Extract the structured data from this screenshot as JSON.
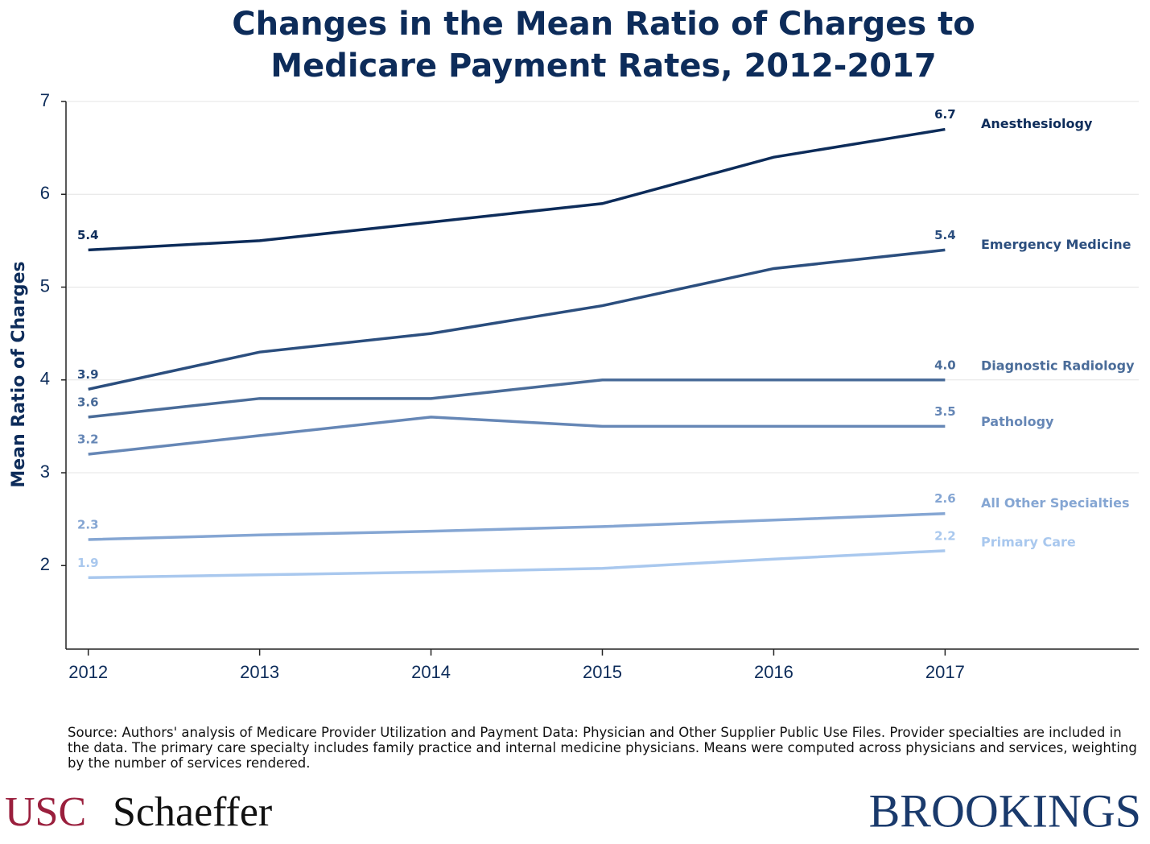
{
  "chart_data": {
    "type": "line",
    "title": [
      "Changes in the Mean Ratio of Charges to",
      "Medicare Payment Rates, 2012-2017"
    ],
    "y_label": "Mean Ratio of Charges",
    "x": [
      2012,
      2013,
      2014,
      2015,
      2016,
      2017
    ],
    "xlim": [
      2011.87,
      2018.13
    ],
    "xticks": [
      2012,
      2013,
      2014,
      2015,
      2016,
      2017
    ],
    "ylim": [
      1.1,
      7
    ],
    "yticks": [
      2,
      3,
      4,
      5,
      6,
      7
    ],
    "grid": true,
    "series": [
      {
        "name": "Anesthesiology",
        "color": "#0d2c5a",
        "values": [
          5.4,
          5.5,
          5.7,
          5.9,
          6.4,
          6.7
        ],
        "value_labels": [
          "5.4",
          null,
          null,
          null,
          null,
          "6.7"
        ]
      },
      {
        "name": "Emergency Medicine",
        "color": "#2b4e7e",
        "values": [
          3.9,
          4.3,
          4.5,
          4.8,
          5.2,
          5.4
        ],
        "value_labels": [
          "3.9",
          null,
          null,
          null,
          null,
          "5.4"
        ]
      },
      {
        "name": "Diagnostic Radiology",
        "color": "#4a6c99",
        "values": [
          3.6,
          3.8,
          3.8,
          4.0,
          4.0,
          4.0
        ],
        "value_labels": [
          "3.6",
          null,
          null,
          null,
          null,
          "4.0"
        ]
      },
      {
        "name": "Pathology",
        "color": "#6687b6",
        "values": [
          3.2,
          3.4,
          3.6,
          3.5,
          3.5,
          3.5
        ],
        "value_labels": [
          "3.2",
          null,
          null,
          null,
          null,
          "3.5"
        ]
      },
      {
        "name": "All Other Specialties",
        "color": "#85a6d3",
        "values": [
          2.28,
          2.33,
          2.37,
          2.42,
          2.49,
          2.56
        ],
        "value_labels": [
          "2.3",
          null,
          null,
          null,
          null,
          "2.6"
        ]
      },
      {
        "name": "Primary Care",
        "color": "#a9c8ee",
        "values": [
          1.87,
          1.9,
          1.93,
          1.97,
          2.07,
          2.16
        ],
        "value_labels": [
          "1.9",
          null,
          null,
          null,
          null,
          "2.2"
        ]
      }
    ],
    "source": "Source: Authors' analysis of Medicare Provider Utilization and Payment Data: Physician and Other Supplier Public Use Files. Provider specialties are included in the data. The primary care specialty includes family practice and internal medicine physicians. Means were computed across physicians and services, weighting by the number of services rendered."
  },
  "branding": {
    "usc": "USC",
    "schaeffer": "Schaeffer",
    "brookings": "BROOKINGS"
  }
}
